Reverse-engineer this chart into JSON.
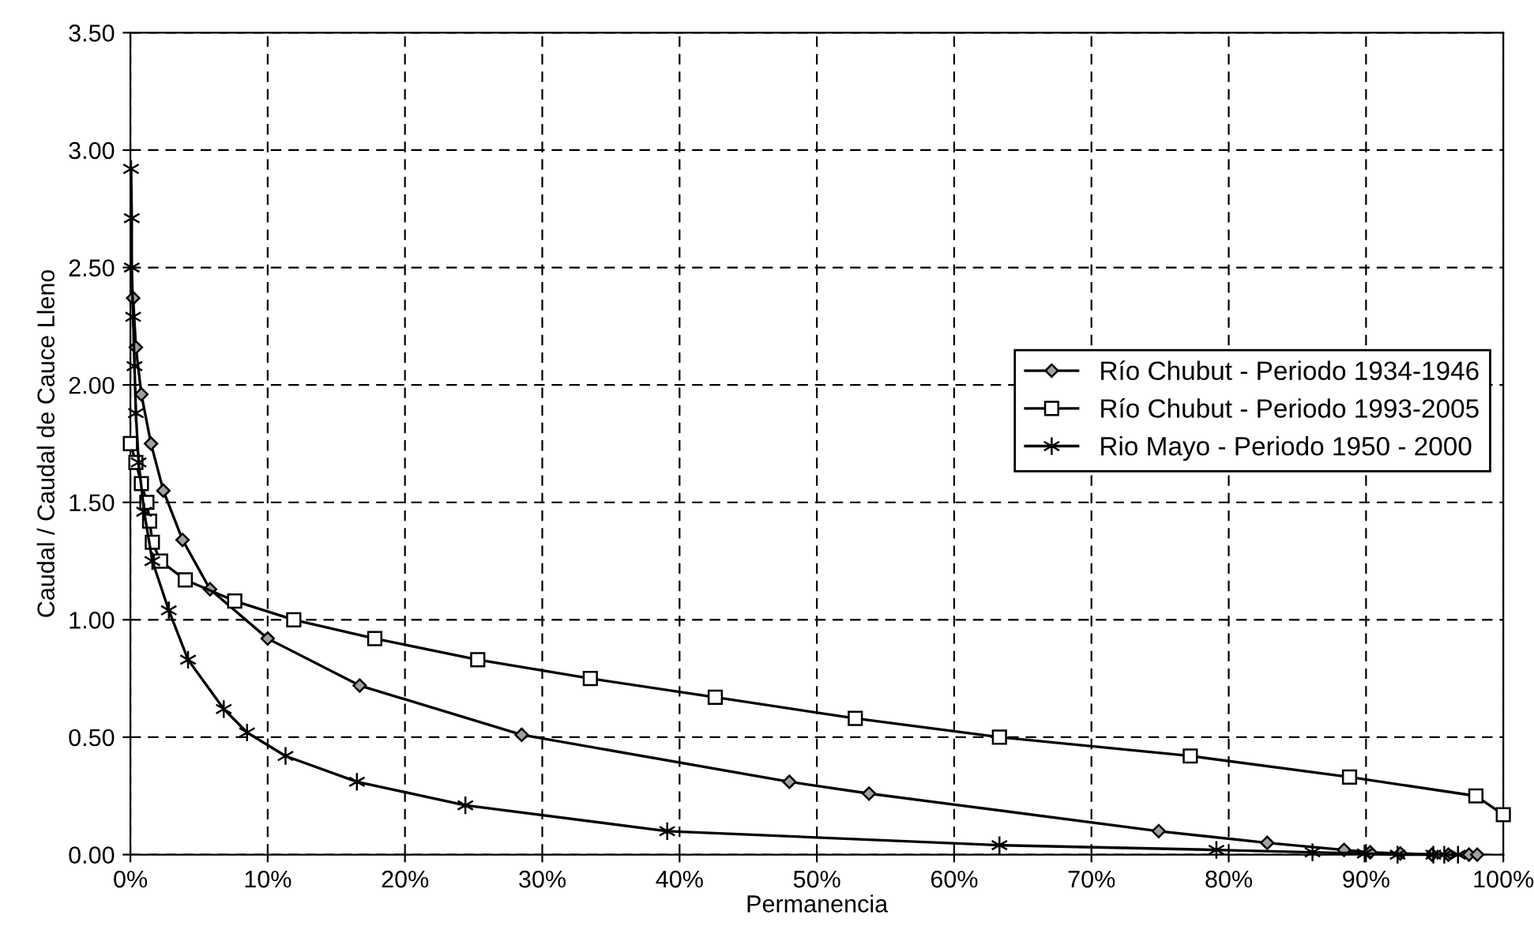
{
  "chart_data": {
    "type": "line",
    "xlabel": "Permanencia",
    "ylabel": "Caudal / Caudal de Cauce Lleno",
    "xlim": [
      0,
      100
    ],
    "ylim": [
      0,
      3.5
    ],
    "xticks": [
      {
        "value": 0,
        "label": "0%"
      },
      {
        "value": 10,
        "label": "10%"
      },
      {
        "value": 20,
        "label": "20%"
      },
      {
        "value": 30,
        "label": "30%"
      },
      {
        "value": 40,
        "label": "40%"
      },
      {
        "value": 50,
        "label": "50%"
      },
      {
        "value": 60,
        "label": "60%"
      },
      {
        "value": 70,
        "label": "70%"
      },
      {
        "value": 80,
        "label": "80%"
      },
      {
        "value": 90,
        "label": "90%"
      },
      {
        "value": 100,
        "label": "100%"
      }
    ],
    "yticks": [
      {
        "value": 0,
        "label": "0.00"
      },
      {
        "value": 0.5,
        "label": "0.50"
      },
      {
        "value": 1,
        "label": "1.00"
      },
      {
        "value": 1.5,
        "label": "1.50"
      },
      {
        "value": 2,
        "label": "2.00"
      },
      {
        "value": 2.5,
        "label": "2.50"
      },
      {
        "value": 3,
        "label": "3.00"
      },
      {
        "value": 3.5,
        "label": "3.50"
      }
    ],
    "grid": true,
    "legend": "right",
    "line_style": "solid",
    "series": [
      {
        "name": "Río Chubut - Periodo 1934-1946",
        "color": "#000000",
        "marker": "diamond",
        "x": [
          0.2,
          0.4,
          0.8,
          1.5,
          2.4,
          3.8,
          5.8,
          10,
          16.7,
          28.5,
          48,
          53.8,
          74.9,
          82.8,
          88.4,
          90.3,
          92.5,
          94.8,
          96,
          97.5,
          98.1
        ],
        "values": [
          2.37,
          2.16,
          1.96,
          1.75,
          1.55,
          1.34,
          1.13,
          0.92,
          0.72,
          0.51,
          0.31,
          0.26,
          0.1,
          0.05,
          0.02,
          0.01,
          0.005,
          0,
          0,
          0,
          0
        ]
      },
      {
        "name": "Río Chubut - Periodo 1993-2005",
        "color": "#000000",
        "marker": "square",
        "x": [
          0,
          0.4,
          0.8,
          1.2,
          1.4,
          1.6,
          2.2,
          4,
          7.6,
          11.9,
          17.8,
          25.3,
          33.5,
          42.6,
          52.8,
          63.3,
          77.2,
          88.8,
          98,
          100
        ],
        "values": [
          1.75,
          1.67,
          1.58,
          1.5,
          1.42,
          1.33,
          1.25,
          1.17,
          1.08,
          1,
          0.92,
          0.83,
          0.75,
          0.67,
          0.58,
          0.5,
          0.42,
          0.33,
          0.25,
          0.17
        ]
      },
      {
        "name": "Rio Mayo - Periodo 1950 - 2000",
        "color": "#000000",
        "marker": "cross",
        "x": [
          0.05,
          0.1,
          0.1,
          0.2,
          0.3,
          0.4,
          0.6,
          1,
          1.6,
          2.8,
          4.2,
          6.8,
          8.5,
          11.3,
          16.5,
          24.4,
          39.1,
          63.3,
          79.1,
          86.1,
          89.9,
          92.3,
          94.9,
          95.7,
          96.7
        ],
        "values": [
          2.92,
          2.71,
          2.5,
          2.29,
          2.08,
          1.88,
          1.67,
          1.46,
          1.25,
          1.04,
          0.83,
          0.62,
          0.52,
          0.42,
          0.31,
          0.21,
          0.1,
          0.04,
          0.02,
          0.01,
          0.005,
          0,
          0,
          0,
          0
        ]
      }
    ]
  }
}
